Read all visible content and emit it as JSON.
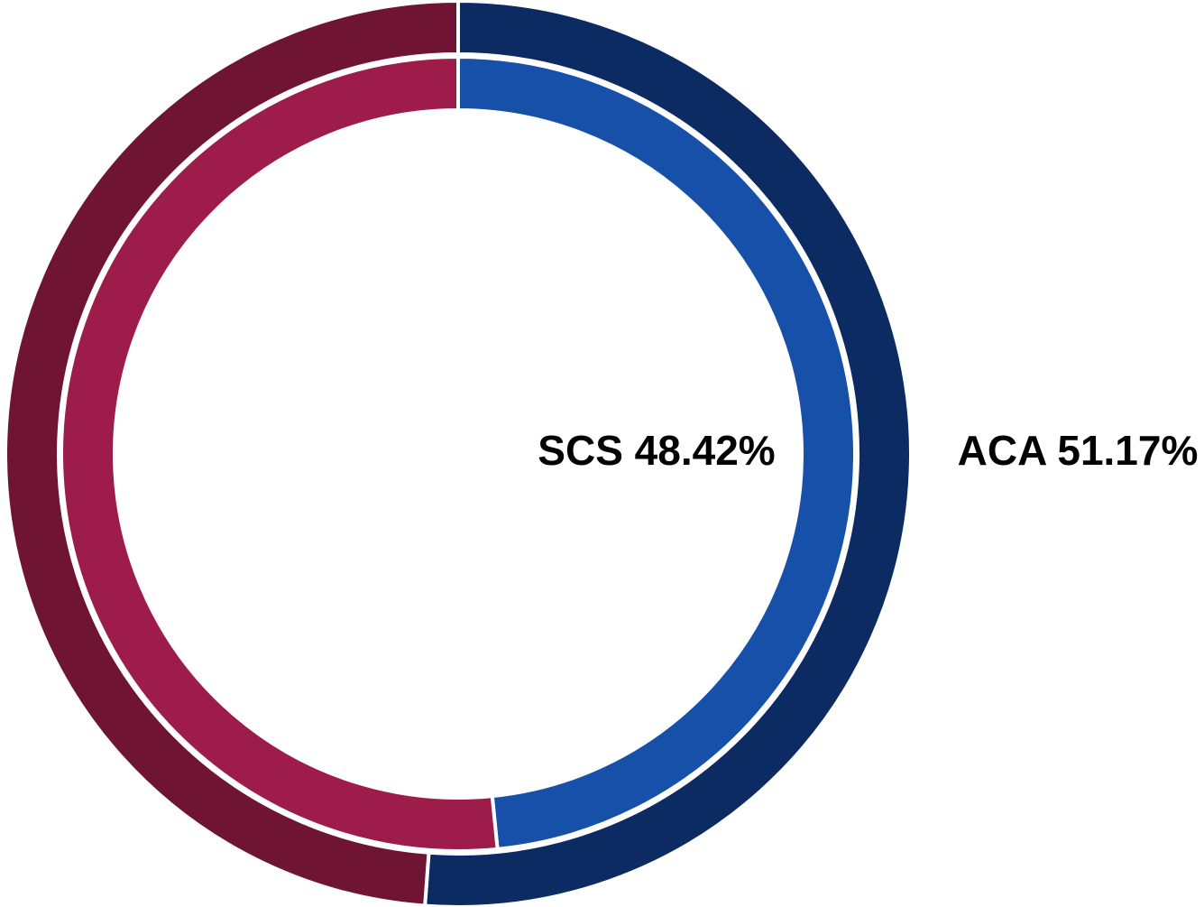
{
  "chart_data": {
    "type": "donut",
    "series": [
      {
        "values": [
          51.17,
          48.83
        ],
        "value_labels": [
          "ACA 51.17%",
          null
        ],
        "colors": [
          "#0c2b62",
          "#701434"
        ]
      },
      {
        "values": [
          48.42,
          51.58
        ],
        "value_labels": [
          "SCS 48.42%",
          null
        ],
        "colors": [
          "#1650a8",
          "#9e1c4a"
        ]
      }
    ]
  }
}
